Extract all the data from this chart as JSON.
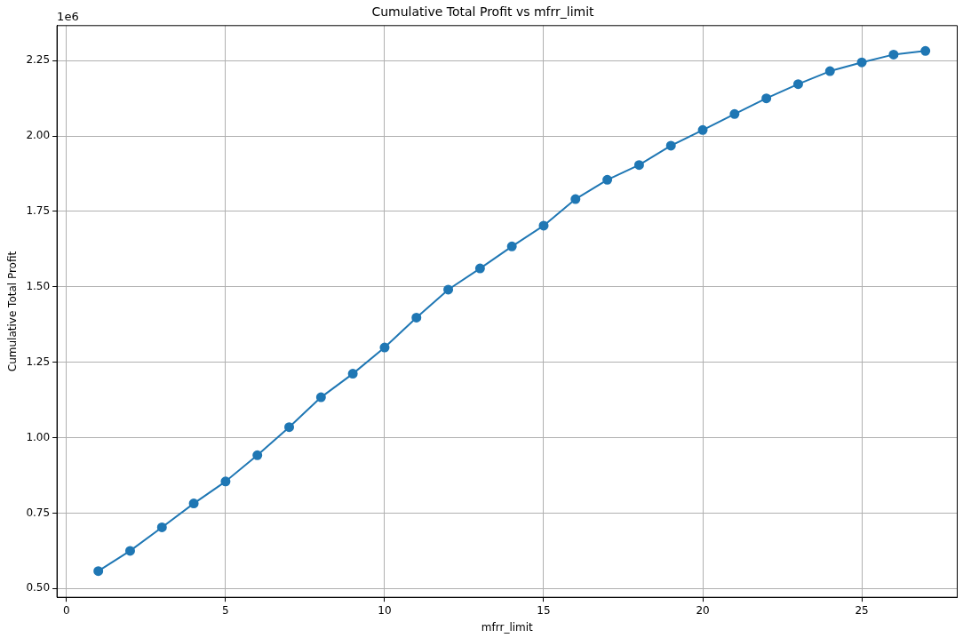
{
  "chart_data": {
    "type": "line",
    "title": "Cumulative Total Profit vs mfrr_limit",
    "xlabel": "mfrr_limit",
    "ylabel": "Cumulative Total Profit",
    "x": [
      1,
      2,
      3,
      4,
      5,
      6,
      7,
      8,
      9,
      10,
      11,
      12,
      13,
      14,
      15,
      16,
      17,
      18,
      19,
      20,
      21,
      22,
      23,
      24,
      25,
      26,
      27
    ],
    "series": [
      {
        "color": "#1f77b4",
        "values": [
          0.558,
          0.625,
          0.703,
          0.782,
          0.855,
          0.942,
          1.035,
          1.134,
          1.212,
          1.299,
          1.398,
          1.491,
          1.561,
          1.634,
          1.703,
          1.791,
          1.855,
          1.904,
          1.968,
          2.02,
          2.073,
          2.125,
          2.172,
          2.215,
          2.244,
          2.27,
          2.282
        ]
      }
    ],
    "xlim": [
      -0.3,
      28.0
    ],
    "xticks": [
      0,
      5,
      10,
      15,
      20,
      25
    ],
    "ylim": [
      0.471,
      2.366
    ],
    "yticks": [
      {
        "value": 0.5,
        "label": "0.50"
      },
      {
        "value": 0.75,
        "label": "0.75"
      },
      {
        "value": 1.0,
        "label": "1.00"
      },
      {
        "value": 1.25,
        "label": "1.25"
      },
      {
        "value": 1.5,
        "label": "1.50"
      },
      {
        "value": 1.75,
        "label": "1.75"
      },
      {
        "value": 2.0,
        "label": "2.00"
      },
      {
        "value": 2.25,
        "label": "2.25"
      }
    ],
    "annotations": [
      "1e6"
    ],
    "grid": true,
    "legend": false,
    "marker": "circle",
    "line_style": "solid"
  }
}
